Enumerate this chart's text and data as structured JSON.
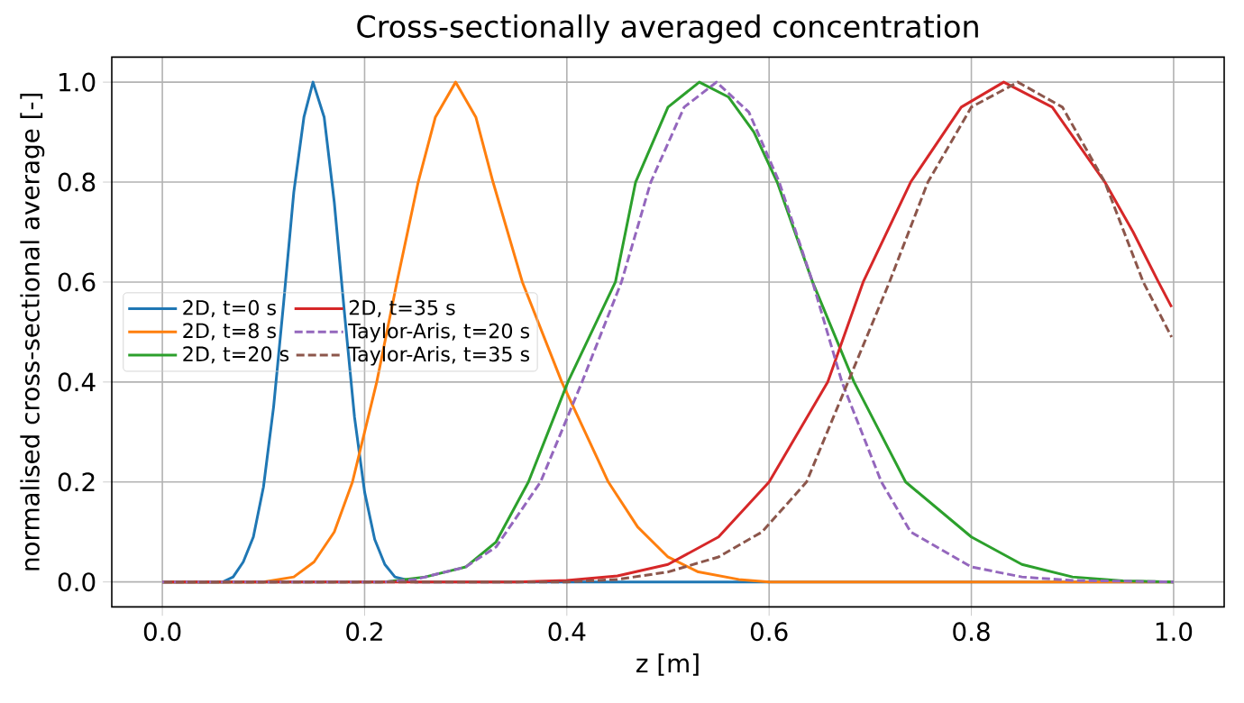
{
  "chart_data": {
    "type": "line",
    "title": "Cross-sectionally averaged concentration",
    "xlabel": "z [m]",
    "ylabel": "normalised cross-sectional average [-]",
    "xlim": [
      -0.05,
      1.05
    ],
    "ylim": [
      -0.05,
      1.05
    ],
    "xticks": [
      {
        "value": 0,
        "label": "0.0"
      },
      0.2,
      0.4,
      0.6,
      0.8,
      {
        "value": 1,
        "label": "1.0"
      }
    ],
    "yticks": [
      {
        "value": 0,
        "label": "0.0"
      },
      0.2,
      0.4,
      0.6,
      0.8,
      {
        "value": 1,
        "label": "1.0"
      }
    ],
    "grid": true,
    "legend": "left",
    "marker": "none",
    "series": [
      {
        "name": "2D, t=0 s",
        "color": "#1f77b4",
        "line_style": "solid",
        "x": [
          0,
          0.06,
          0.07,
          0.08,
          0.09,
          0.1,
          0.11,
          0.12,
          0.13,
          0.14,
          0.149,
          0.16,
          0.17,
          0.18,
          0.19,
          0.2,
          0.21,
          0.22,
          0.23,
          0.25,
          1.0
        ],
        "values": [
          0,
          0,
          0.01,
          0.04,
          0.09,
          0.19,
          0.35,
          0.56,
          0.78,
          0.93,
          1.0,
          0.93,
          0.76,
          0.54,
          0.33,
          0.18,
          0.085,
          0.035,
          0.01,
          0,
          0
        ]
      },
      {
        "name": "2D, t=8 s",
        "color": "#ff7f0e",
        "line_style": "solid",
        "x": [
          0,
          0.1,
          0.13,
          0.15,
          0.17,
          0.188,
          0.212,
          0.232,
          0.253,
          0.27,
          0.29,
          0.31,
          0.327,
          0.356,
          0.395,
          0.441,
          0.47,
          0.5,
          0.53,
          0.57,
          0.6,
          1.0
        ],
        "values": [
          0,
          0,
          0.01,
          0.04,
          0.1,
          0.2,
          0.4,
          0.6,
          0.8,
          0.93,
          1.0,
          0.93,
          0.8,
          0.6,
          0.4,
          0.2,
          0.11,
          0.05,
          0.02,
          0.005,
          0,
          0
        ]
      },
      {
        "name": "2D, t=20 s",
        "color": "#2ca02c",
        "line_style": "solid",
        "x": [
          0,
          0.22,
          0.26,
          0.3,
          0.33,
          0.362,
          0.401,
          0.448,
          0.468,
          0.5,
          0.531,
          0.56,
          0.585,
          0.608,
          0.643,
          0.684,
          0.735,
          0.8,
          0.85,
          0.9,
          0.95,
          1.0
        ],
        "values": [
          0,
          0,
          0.01,
          0.03,
          0.08,
          0.2,
          0.4,
          0.6,
          0.8,
          0.95,
          1.0,
          0.97,
          0.9,
          0.8,
          0.6,
          0.4,
          0.2,
          0.09,
          0.035,
          0.01,
          0.002,
          0
        ]
      },
      {
        "name": "2D, t=35 s",
        "color": "#d62728",
        "line_style": "solid",
        "x": [
          0,
          0.35,
          0.4,
          0.45,
          0.5,
          0.55,
          0.6,
          0.658,
          0.693,
          0.74,
          0.79,
          0.832,
          0.88,
          0.932,
          0.96,
          0.985,
          0.998
        ],
        "values": [
          0,
          0,
          0.003,
          0.012,
          0.035,
          0.09,
          0.2,
          0.4,
          0.6,
          0.8,
          0.95,
          1.0,
          0.95,
          0.8,
          0.7,
          0.6,
          0.55
        ]
      },
      {
        "name": "Taylor-Aris, t=20 s",
        "color": "#9467bd",
        "line_style": "dashed",
        "x": [
          0,
          0.22,
          0.25,
          0.3,
          0.33,
          0.374,
          0.415,
          0.454,
          0.483,
          0.516,
          0.548,
          0.58,
          0.61,
          0.643,
          0.672,
          0.711,
          0.74,
          0.8,
          0.85,
          0.9,
          1.0
        ],
        "values": [
          0,
          0,
          0.005,
          0.03,
          0.07,
          0.2,
          0.4,
          0.6,
          0.8,
          0.95,
          1.0,
          0.94,
          0.8,
          0.6,
          0.4,
          0.2,
          0.1,
          0.03,
          0.01,
          0.003,
          0
        ]
      },
      {
        "name": "Taylor-Aris, t=35 s",
        "color": "#8c564b",
        "line_style": "dashed",
        "x": [
          0,
          0.4,
          0.45,
          0.5,
          0.55,
          0.593,
          0.637,
          0.678,
          0.719,
          0.757,
          0.8,
          0.846,
          0.89,
          0.932,
          0.97,
          0.998
        ],
        "values": [
          0,
          0,
          0.005,
          0.02,
          0.05,
          0.1,
          0.2,
          0.4,
          0.6,
          0.8,
          0.95,
          1.0,
          0.95,
          0.8,
          0.6,
          0.49
        ]
      }
    ]
  }
}
